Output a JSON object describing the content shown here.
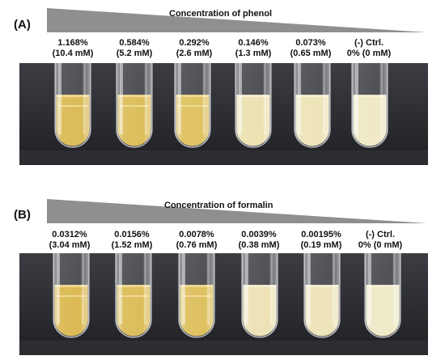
{
  "panels": [
    {
      "label": "(A)",
      "title": "Concentration of phenol",
      "tubes": [
        {
          "line1": "1.168%",
          "line2": "(10.4 mM)",
          "liquid": "#d8b64a",
          "clear": true
        },
        {
          "line1": "0.584%",
          "line2": "(5.2 mM)",
          "liquid": "#d9b94e",
          "clear": true
        },
        {
          "line1": "0.292%",
          "line2": "(2.6 mM)",
          "liquid": "#dcbd55",
          "clear": true
        },
        {
          "line1": "0.146%",
          "line2": "(1.3 mM)",
          "liquid": "#e6d89c",
          "clear": false
        },
        {
          "line1": "0.073%",
          "line2": "(0.65 mM)",
          "liquid": "#e8dca3",
          "clear": false
        },
        {
          "line1": "(-) Ctrl.",
          "line2": "0% (0 mM)",
          "liquid": "#e9e2b4",
          "clear": false
        }
      ]
    },
    {
      "label": "(B)",
      "title": "Concentration of formalin",
      "tubes": [
        {
          "line1": "0.0312%",
          "line2": "(3.04 mM)",
          "liquid": "#d8b446",
          "clear": true
        },
        {
          "line1": "0.0156%",
          "line2": "(1.52 mM)",
          "liquid": "#d9b84d",
          "clear": true
        },
        {
          "line1": "0.0078%",
          "line2": "(0.76 mM)",
          "liquid": "#dbbb52",
          "clear": true
        },
        {
          "line1": "0.0039%",
          "line2": "(0.38 mM)",
          "liquid": "#e7d99f",
          "clear": false
        },
        {
          "line1": "0.00195%",
          "line2": "(0.19 mM)",
          "liquid": "#e8dba4",
          "clear": false
        },
        {
          "line1": "(-) Ctrl.",
          "line2": "0% (0 mM)",
          "liquid": "#eae3b6",
          "clear": false
        }
      ]
    }
  ],
  "colors": {
    "wedge": "#8f8f8f",
    "photo_bg_top": "#3c3d42",
    "photo_bg_bottom": "#1f2024",
    "glass": "#d7dbe0"
  }
}
